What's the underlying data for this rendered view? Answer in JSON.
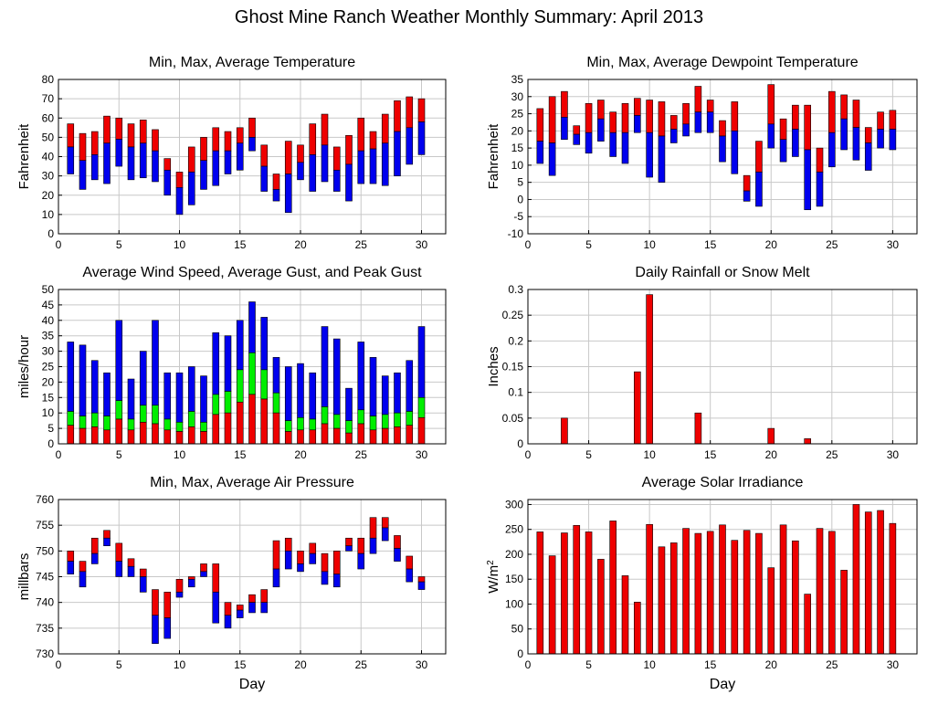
{
  "page": {
    "title": "Ghost Mine Ranch Weather Monthly Summary: April 2013"
  },
  "colors": {
    "red": "#ee0000",
    "blue": "#0000ee",
    "green": "#00ee00",
    "outline": "#000000",
    "grid": "#c8c8c8"
  },
  "chart_data": [
    {
      "id": "temp",
      "type": "bar",
      "title": "Min, Max, Average Temperature",
      "ylabel": "Fahrenheit",
      "xlabel": "",
      "xlim": [
        0,
        32
      ],
      "ylim": [
        0,
        80
      ],
      "xticks": [
        0,
        5,
        10,
        15,
        20,
        25,
        30
      ],
      "yticks": [
        0,
        10,
        20,
        30,
        40,
        50,
        60,
        70,
        80
      ],
      "grid": true,
      "x": [
        1,
        2,
        3,
        4,
        5,
        6,
        7,
        8,
        9,
        10,
        11,
        12,
        13,
        14,
        15,
        16,
        17,
        18,
        19,
        20,
        21,
        22,
        23,
        24,
        25,
        26,
        27,
        28,
        29,
        30
      ],
      "series": [
        {
          "role": "max",
          "values": [
            57,
            52,
            53,
            61,
            60,
            57,
            59,
            54,
            39,
            32,
            45,
            50,
            55,
            53,
            55,
            60,
            46,
            31,
            48,
            46,
            57,
            62,
            45,
            51,
            60,
            53,
            62,
            69,
            71,
            70
          ]
        },
        {
          "role": "avg",
          "values": [
            45,
            38,
            41,
            47,
            49,
            45,
            47,
            43,
            33,
            24,
            32,
            38,
            43,
            43,
            47,
            50,
            35,
            23,
            31,
            37,
            41,
            46,
            33,
            36,
            43,
            44,
            47,
            53,
            55,
            58
          ]
        },
        {
          "role": "min",
          "values": [
            31,
            23,
            28,
            26,
            35,
            28,
            29,
            27,
            20,
            10,
            15,
            23,
            25,
            31,
            33,
            43,
            22,
            17,
            11,
            28,
            22,
            27,
            22,
            17,
            26,
            26,
            25,
            30,
            36,
            41
          ]
        }
      ]
    },
    {
      "id": "dewpoint",
      "type": "bar",
      "title": "Min, Max, Average Dewpoint Temperature",
      "ylabel": "Fahrenheit",
      "xlabel": "",
      "xlim": [
        0,
        32
      ],
      "ylim": [
        -10,
        35
      ],
      "xticks": [
        0,
        5,
        10,
        15,
        20,
        25,
        30
      ],
      "yticks": [
        -10,
        -5,
        0,
        5,
        10,
        15,
        20,
        25,
        30,
        35
      ],
      "grid": true,
      "x": [
        1,
        2,
        3,
        4,
        5,
        6,
        7,
        8,
        9,
        10,
        11,
        12,
        13,
        14,
        15,
        16,
        17,
        18,
        19,
        20,
        21,
        22,
        23,
        24,
        25,
        26,
        27,
        28,
        29,
        30
      ],
      "series": [
        {
          "role": "max",
          "values": [
            26.5,
            30,
            31.5,
            21.5,
            28,
            29,
            25.5,
            28,
            29.5,
            29,
            28.5,
            24.5,
            28,
            33,
            29,
            23,
            28.5,
            7,
            17,
            33.5,
            23.5,
            27.5,
            27.5,
            15,
            31.5,
            30.5,
            29,
            21,
            25.5,
            26
          ]
        },
        {
          "role": "avg",
          "values": [
            17,
            16.5,
            24,
            19,
            19.5,
            23.5,
            19.5,
            19.5,
            24.5,
            19.5,
            18.5,
            20.5,
            22,
            25.5,
            25.5,
            18.5,
            20,
            2.5,
            8,
            22,
            17.5,
            20.5,
            14.5,
            8,
            19.5,
            23.5,
            21,
            16.5,
            20.5,
            20.5
          ]
        },
        {
          "role": "min",
          "values": [
            10.5,
            7,
            17.5,
            16,
            13.5,
            17,
            12.5,
            10.5,
            19.5,
            6.5,
            5,
            16.5,
            18.5,
            19.5,
            19.5,
            11,
            7.5,
            -0.5,
            -2,
            15,
            11,
            12.5,
            -3,
            -2,
            9.5,
            14.5,
            11.5,
            8.5,
            15,
            14.5
          ]
        }
      ]
    },
    {
      "id": "wind",
      "type": "bar",
      "title": "Average Wind Speed, Average Gust, and Peak Gust",
      "ylabel": "miles/hour",
      "xlabel": "",
      "xlim": [
        0,
        32
      ],
      "ylim": [
        0,
        50
      ],
      "xticks": [
        0,
        5,
        10,
        15,
        20,
        25,
        30
      ],
      "yticks": [
        0,
        5,
        10,
        15,
        20,
        25,
        30,
        35,
        40,
        45,
        50
      ],
      "grid": true,
      "x": [
        1,
        2,
        3,
        4,
        5,
        6,
        7,
        8,
        9,
        10,
        11,
        12,
        13,
        14,
        15,
        16,
        17,
        18,
        19,
        20,
        21,
        22,
        23,
        24,
        25,
        26,
        27,
        28,
        29,
        30
      ],
      "series": [
        {
          "role": "peak_gust",
          "values": [
            33,
            32,
            27,
            23,
            40,
            21,
            30,
            40,
            23,
            23,
            25,
            22,
            36,
            35,
            40,
            46,
            41,
            28,
            25,
            26,
            23,
            38,
            34,
            18,
            33,
            28,
            22,
            23,
            27,
            38
          ]
        },
        {
          "role": "avg_gust",
          "values": [
            10.5,
            9,
            10,
            9,
            14,
            8,
            12.5,
            12.5,
            8,
            7,
            10.5,
            7,
            16,
            17,
            24,
            29.5,
            24,
            16.5,
            7.5,
            8.5,
            8,
            12,
            9.5,
            7.5,
            11,
            9,
            9.5,
            10,
            10.5,
            15
          ]
        },
        {
          "role": "avg_speed",
          "values": [
            6,
            5,
            5.5,
            4.5,
            8,
            4.5,
            7,
            6.5,
            4.5,
            4,
            5.5,
            4,
            9.5,
            10,
            13.5,
            16,
            14.5,
            10,
            4,
            4.5,
            4.5,
            6.5,
            5,
            3.5,
            6.5,
            4.5,
            5,
            5.5,
            6,
            8.5
          ]
        }
      ]
    },
    {
      "id": "rain",
      "type": "bar",
      "title": "Daily Rainfall or Snow Melt",
      "ylabel": "Inches",
      "xlabel": "",
      "xlim": [
        0,
        32
      ],
      "ylim": [
        0,
        0.3
      ],
      "xticks": [
        0,
        5,
        10,
        15,
        20,
        25,
        30
      ],
      "yticks": [
        0,
        0.05,
        0.1,
        0.15,
        0.2,
        0.25,
        0.3
      ],
      "grid": true,
      "x": [
        1,
        2,
        3,
        4,
        5,
        6,
        7,
        8,
        9,
        10,
        11,
        12,
        13,
        14,
        15,
        16,
        17,
        18,
        19,
        20,
        21,
        22,
        23,
        24,
        25,
        26,
        27,
        28,
        29,
        30
      ],
      "series": [
        {
          "role": "rain",
          "values": [
            0,
            0,
            0.05,
            0,
            0,
            0,
            0,
            0,
            0.14,
            0.29,
            0,
            0,
            0,
            0.06,
            0,
            0,
            0,
            0,
            0,
            0.03,
            0,
            0,
            0.01,
            0,
            0,
            0,
            0,
            0,
            0,
            0
          ]
        }
      ]
    },
    {
      "id": "pressure",
      "type": "bar",
      "title": "Min, Max, Average Air Pressure",
      "ylabel": "millbars",
      "xlabel": "Day",
      "xlim": [
        0,
        32
      ],
      "ylim": [
        730,
        760
      ],
      "xticks": [
        0,
        5,
        10,
        15,
        20,
        25,
        30
      ],
      "yticks": [
        730,
        735,
        740,
        745,
        750,
        755,
        760
      ],
      "grid": true,
      "x": [
        1,
        2,
        3,
        4,
        5,
        6,
        7,
        8,
        9,
        10,
        11,
        12,
        13,
        14,
        15,
        16,
        17,
        18,
        19,
        20,
        21,
        22,
        23,
        24,
        25,
        26,
        27,
        28,
        29,
        30
      ],
      "series": [
        {
          "role": "max",
          "values": [
            750,
            748,
            752.5,
            754,
            751.5,
            748.5,
            746.5,
            742.5,
            742,
            744.5,
            745,
            747.5,
            747.5,
            740,
            739.5,
            741.5,
            742.5,
            752,
            752.5,
            750,
            751.5,
            749.5,
            750,
            752.5,
            752.5,
            756.5,
            756.5,
            753,
            749,
            745
          ]
        },
        {
          "role": "avg",
          "values": [
            748,
            746,
            749.5,
            752.5,
            748,
            747,
            745,
            737.5,
            737,
            742,
            744.5,
            746,
            742,
            737.5,
            738.5,
            740,
            740,
            746.5,
            750,
            747.5,
            749.5,
            746,
            745.5,
            751,
            749.5,
            752.5,
            754.5,
            750.5,
            746.5,
            744
          ]
        },
        {
          "role": "min",
          "values": [
            745.5,
            743,
            747.5,
            751,
            745,
            745,
            742,
            732,
            733,
            741,
            743,
            745,
            736,
            735,
            737,
            738,
            738,
            743,
            746.5,
            746,
            747.5,
            743.5,
            743,
            750,
            746.5,
            749.5,
            752,
            748,
            744,
            742.5
          ]
        }
      ]
    },
    {
      "id": "solar",
      "type": "bar",
      "title": "Average Solar Irradiance",
      "ylabel": "W/m",
      "ylabel_sup": "2",
      "xlabel": "Day",
      "xlim": [
        0,
        32
      ],
      "ylim": [
        0,
        310
      ],
      "xticks": [
        0,
        5,
        10,
        15,
        20,
        25,
        30
      ],
      "yticks": [
        0,
        50,
        100,
        150,
        200,
        250,
        300
      ],
      "grid": true,
      "x": [
        1,
        2,
        3,
        4,
        5,
        6,
        7,
        8,
        9,
        10,
        11,
        12,
        13,
        14,
        15,
        16,
        17,
        18,
        19,
        20,
        21,
        22,
        23,
        24,
        25,
        26,
        27,
        28,
        29,
        30
      ],
      "series": [
        {
          "role": "solar",
          "values": [
            245,
            197,
            243,
            258,
            245,
            190,
            267,
            157,
            104,
            260,
            215,
            223,
            252,
            242,
            246,
            259,
            228,
            248,
            242,
            173,
            259,
            227,
            120,
            252,
            246,
            168,
            300,
            285,
            288,
            262
          ]
        }
      ]
    }
  ]
}
